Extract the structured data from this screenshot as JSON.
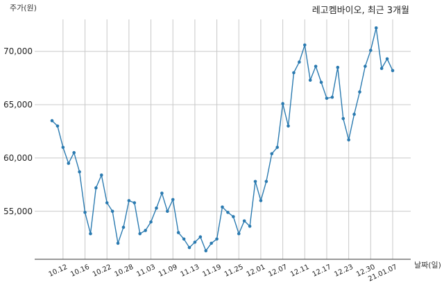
{
  "chart_data": {
    "type": "line",
    "title": "레고켐바이오, 최근 3개월",
    "ylabel": "주가(원)",
    "xlabel": "날짜(일)",
    "grid": true,
    "ylim": [
      50500,
      73000
    ],
    "yticks": [
      55000,
      60000,
      65000,
      70000
    ],
    "ytick_labels": [
      "55,000",
      "60,000",
      "65,000",
      "70,000"
    ],
    "xtick_labels": [
      "10.12",
      "10.16",
      "10.22",
      "10.28",
      "11.03",
      "11.09",
      "11.13",
      "11.19",
      "11.25",
      "12.01",
      "12.07",
      "12.11",
      "12.17",
      "12.23",
      "12.30",
      "21.01.07"
    ],
    "xtick_indices": [
      2,
      6,
      10,
      14,
      18,
      22,
      26,
      30,
      34,
      38,
      42,
      46,
      50,
      54,
      58,
      62
    ],
    "series": [
      {
        "color": "#2a7ab0",
        "values": [
          63500,
          63000,
          61000,
          59500,
          60500,
          58700,
          54900,
          52900,
          57200,
          58400,
          55800,
          55000,
          52000,
          53500,
          56000,
          55800,
          52900,
          53200,
          54000,
          55300,
          56700,
          55000,
          56100,
          53000,
          52400,
          51600,
          52100,
          52600,
          51300,
          52000,
          52400,
          55400,
          54900,
          54500,
          52900,
          54100,
          53600,
          57800,
          56000,
          57800,
          60400,
          61000,
          65100,
          63000,
          68000,
          69000,
          70600,
          67300,
          68600,
          67100,
          65600,
          65700,
          68500,
          63700,
          61700,
          64100,
          66200,
          68600,
          70100,
          72200,
          68400,
          69300,
          68200
        ]
      }
    ]
  }
}
